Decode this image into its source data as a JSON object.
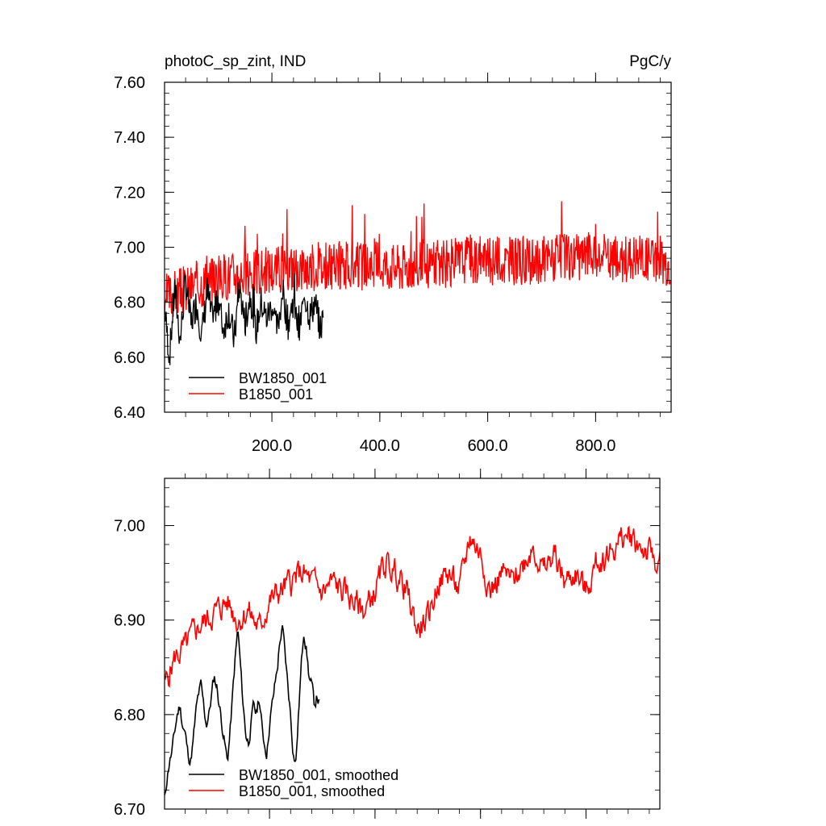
{
  "chart_data": [
    {
      "type": "line",
      "title": "photoC_sp_zint, IND",
      "units_label": "PgC/y",
      "xlim": [
        1,
        940
      ],
      "ylim": [
        6.4,
        7.6
      ],
      "x_ticks": [
        200,
        400,
        600,
        800
      ],
      "x_tick_labels": [
        "200.0",
        "400.0",
        "600.0",
        "800.0"
      ],
      "y_ticks": [
        6.4,
        6.6,
        6.8,
        7.0,
        7.2,
        7.4,
        7.6
      ],
      "y_tick_labels": [
        "6.40",
        "6.60",
        "6.80",
        "7.00",
        "7.20",
        "7.40",
        "7.60"
      ],
      "grid": false,
      "legend_position": "bottom-left",
      "series": [
        {
          "name": "BW1850_001",
          "color": "#000000",
          "x": [
            1,
            10,
            20,
            30,
            40,
            50,
            60,
            70,
            80,
            90,
            100,
            110,
            120,
            130,
            140,
            150,
            160,
            170,
            180,
            190,
            200,
            210,
            220,
            230,
            240,
            250,
            260,
            270,
            280,
            290,
            295
          ],
          "y": [
            6.78,
            6.6,
            6.85,
            6.66,
            6.88,
            6.72,
            6.8,
            6.68,
            6.84,
            6.73,
            6.82,
            6.7,
            6.77,
            6.66,
            6.86,
            6.72,
            6.83,
            6.69,
            6.8,
            6.74,
            6.79,
            6.7,
            6.84,
            6.72,
            6.81,
            6.68,
            6.83,
            6.75,
            6.8,
            6.7,
            6.74
          ],
          "noise_amp": 0.06,
          "seed": 7
        },
        {
          "name": "B1850_001",
          "color": "#ff0000",
          "x": [
            1,
            40,
            80,
            120,
            160,
            200,
            240,
            280,
            320,
            360,
            400,
            440,
            480,
            520,
            560,
            600,
            640,
            680,
            720,
            760,
            800,
            840,
            880,
            920,
            940
          ],
          "y": [
            6.82,
            6.85,
            6.88,
            6.9,
            6.91,
            6.92,
            6.93,
            6.93,
            6.93,
            6.93,
            6.94,
            6.93,
            6.94,
            6.94,
            6.96,
            6.95,
            6.95,
            6.94,
            6.96,
            6.96,
            6.97,
            6.95,
            6.97,
            6.96,
            6.94
          ],
          "noise_amp": 0.09,
          "seed": 3
        }
      ]
    },
    {
      "type": "line",
      "title": "",
      "xlim": [
        1,
        940
      ],
      "ylim": [
        6.7,
        7.05
      ],
      "x_ticks": [
        200,
        400,
        600,
        800
      ],
      "x_tick_labels": [
        "",
        "",
        "",
        ""
      ],
      "y_ticks": [
        6.7,
        6.8,
        6.9,
        7.0
      ],
      "y_tick_labels": [
        "6.70",
        "6.80",
        "6.90",
        "7.00"
      ],
      "grid": false,
      "legend_position": "bottom-left",
      "series": [
        {
          "name": "BW1850_001, smoothed",
          "color": "#000000",
          "x": [
            1,
            5,
            10,
            15,
            20,
            25,
            30,
            35,
            40,
            45,
            50,
            55,
            60,
            65,
            70,
            75,
            80,
            85,
            90,
            95,
            100,
            105,
            110,
            115,
            120,
            125,
            130,
            135,
            140,
            145,
            150,
            155,
            160,
            165,
            170,
            175,
            180,
            185,
            190,
            195,
            200,
            205,
            210,
            215,
            220,
            225,
            230,
            235,
            240,
            245,
            250,
            255,
            260,
            265,
            270,
            275,
            280,
            285,
            290,
            295
          ],
          "y": [
            6.71,
            6.73,
            6.75,
            6.76,
            6.78,
            6.8,
            6.81,
            6.79,
            6.78,
            6.76,
            6.75,
            6.77,
            6.8,
            6.82,
            6.83,
            6.81,
            6.79,
            6.8,
            6.82,
            6.84,
            6.83,
            6.81,
            6.79,
            6.77,
            6.75,
            6.78,
            6.82,
            6.86,
            6.89,
            6.85,
            6.81,
            6.78,
            6.77,
            6.79,
            6.81,
            6.8,
            6.82,
            6.79,
            6.77,
            6.76,
            6.79,
            6.81,
            6.83,
            6.85,
            6.88,
            6.89,
            6.86,
            6.83,
            6.8,
            6.76,
            6.75,
            6.8,
            6.85,
            6.89,
            6.87,
            6.84,
            6.83,
            6.81,
            6.82,
            6.81
          ],
          "noise_amp": 0.006,
          "seed": 11
        },
        {
          "name": "B1850_001, smoothed",
          "color": "#ff0000",
          "x": [
            1,
            20,
            40,
            60,
            80,
            100,
            120,
            140,
            160,
            180,
            200,
            220,
            240,
            260,
            280,
            300,
            320,
            340,
            360,
            380,
            400,
            420,
            440,
            460,
            480,
            500,
            520,
            540,
            560,
            580,
            600,
            620,
            640,
            660,
            680,
            700,
            720,
            740,
            760,
            780,
            800,
            820,
            840,
            860,
            880,
            900,
            920,
            940
          ],
          "y": [
            6.83,
            6.86,
            6.87,
            6.89,
            6.9,
            6.91,
            6.92,
            6.9,
            6.91,
            6.89,
            6.92,
            6.93,
            6.94,
            6.95,
            6.94,
            6.93,
            6.94,
            6.93,
            6.92,
            6.91,
            6.93,
            6.96,
            6.95,
            6.93,
            6.89,
            6.9,
            6.94,
            6.95,
            6.93,
            6.99,
            6.97,
            6.93,
            6.95,
            6.94,
            6.96,
            6.98,
            6.95,
            6.97,
            6.94,
            6.95,
            6.93,
            6.96,
            6.97,
            6.98,
            6.99,
            6.98,
            6.97,
            6.96
          ],
          "noise_amp": 0.012,
          "seed": 5
        }
      ]
    }
  ]
}
